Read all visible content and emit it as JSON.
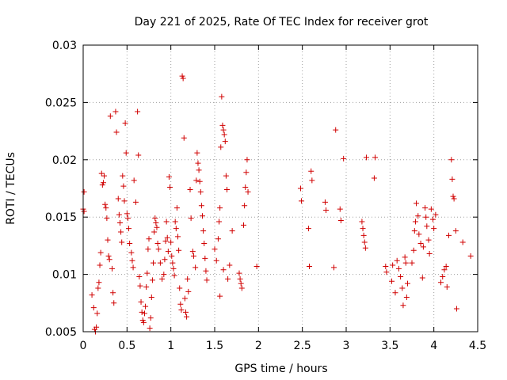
{
  "chart_data": {
    "type": "scatter",
    "title": "Day 221 of 2025, Rate Of TEC Index for receiver grot",
    "xlabel": "GPS time / hours",
    "ylabel": "ROTI / TECUs",
    "xlim": [
      0,
      4.5
    ],
    "ylim": [
      0.005,
      0.03
    ],
    "x_ticks": [
      "0",
      "0.5",
      "1",
      "1.5",
      "2",
      "2.5",
      "3",
      "3.5",
      "4",
      "4.5"
    ],
    "y_ticks": [
      "0.005",
      "0.01",
      "0.015",
      "0.02",
      "0.025",
      "0.03"
    ],
    "grid": true,
    "marker": "+",
    "color": "#d00000",
    "series": [
      {
        "points": [
          [
            0.01,
            0.0172
          ],
          [
            0.0,
            0.0157
          ],
          [
            0.01,
            0.0155
          ],
          [
            0.1,
            0.0082
          ],
          [
            0.12,
            0.0071
          ],
          [
            0.13,
            0.0052
          ],
          [
            0.14,
            0.005
          ],
          [
            0.15,
            0.0054
          ],
          [
            0.16,
            0.0066
          ],
          [
            0.17,
            0.0088
          ],
          [
            0.18,
            0.0093
          ],
          [
            0.19,
            0.0108
          ],
          [
            0.2,
            0.0119
          ],
          [
            0.21,
            0.0188
          ],
          [
            0.22,
            0.0178
          ],
          [
            0.23,
            0.018
          ],
          [
            0.24,
            0.0186
          ],
          [
            0.25,
            0.0161
          ],
          [
            0.26,
            0.0158
          ],
          [
            0.27,
            0.0149
          ],
          [
            0.28,
            0.013
          ],
          [
            0.29,
            0.0116
          ],
          [
            0.3,
            0.0113
          ],
          [
            0.31,
            0.0238
          ],
          [
            0.33,
            0.0105
          ],
          [
            0.34,
            0.0084
          ],
          [
            0.35,
            0.0075
          ],
          [
            0.37,
            0.0242
          ],
          [
            0.38,
            0.0224
          ],
          [
            0.4,
            0.0166
          ],
          [
            0.41,
            0.0152
          ],
          [
            0.42,
            0.0145
          ],
          [
            0.43,
            0.0137
          ],
          [
            0.44,
            0.0128
          ],
          [
            0.45,
            0.0186
          ],
          [
            0.46,
            0.0177
          ],
          [
            0.47,
            0.0164
          ],
          [
            0.48,
            0.0232
          ],
          [
            0.49,
            0.0206
          ],
          [
            0.5,
            0.0153
          ],
          [
            0.51,
            0.0149
          ],
          [
            0.52,
            0.014
          ],
          [
            0.53,
            0.0127
          ],
          [
            0.55,
            0.0119
          ],
          [
            0.56,
            0.0112
          ],
          [
            0.57,
            0.0106
          ],
          [
            0.58,
            0.0182
          ],
          [
            0.6,
            0.0163
          ],
          [
            0.62,
            0.0242
          ],
          [
            0.63,
            0.0204
          ],
          [
            0.64,
            0.0098
          ],
          [
            0.65,
            0.009
          ],
          [
            0.66,
            0.0076
          ],
          [
            0.67,
            0.0067
          ],
          [
            0.68,
            0.006
          ],
          [
            0.69,
            0.0058
          ],
          [
            0.7,
            0.0066
          ],
          [
            0.71,
            0.0072
          ],
          [
            0.72,
            0.0089
          ],
          [
            0.73,
            0.0101
          ],
          [
            0.74,
            0.0122
          ],
          [
            0.75,
            0.0131
          ],
          [
            0.76,
            0.0053
          ],
          [
            0.77,
            0.0062
          ],
          [
            0.78,
            0.008
          ],
          [
            0.79,
            0.0095
          ],
          [
            0.8,
            0.011
          ],
          [
            0.81,
            0.0137
          ],
          [
            0.82,
            0.0149
          ],
          [
            0.83,
            0.0145
          ],
          [
            0.84,
            0.0141
          ],
          [
            0.85,
            0.0127
          ],
          [
            0.86,
            0.0122
          ],
          [
            0.88,
            0.011
          ],
          [
            0.9,
            0.0096
          ],
          [
            0.92,
            0.01
          ],
          [
            0.93,
            0.0113
          ],
          [
            0.94,
            0.0129
          ],
          [
            0.95,
            0.0146
          ],
          [
            0.96,
            0.0132
          ],
          [
            0.97,
            0.012
          ],
          [
            0.98,
            0.0185
          ],
          [
            0.99,
            0.0176
          ],
          [
            1.0,
            0.0128
          ],
          [
            1.01,
            0.0116
          ],
          [
            1.02,
            0.011
          ],
          [
            1.03,
            0.0105
          ],
          [
            1.04,
            0.0099
          ],
          [
            1.05,
            0.0146
          ],
          [
            1.06,
            0.014
          ],
          [
            1.07,
            0.0158
          ],
          [
            1.08,
            0.0133
          ],
          [
            1.09,
            0.0121
          ],
          [
            1.1,
            0.0088
          ],
          [
            1.11,
            0.0074
          ],
          [
            1.12,
            0.0069
          ],
          [
            1.13,
            0.0273
          ],
          [
            1.14,
            0.0271
          ],
          [
            1.15,
            0.0219
          ],
          [
            1.16,
            0.0079
          ],
          [
            1.17,
            0.0067
          ],
          [
            1.18,
            0.0063
          ],
          [
            1.19,
            0.0096
          ],
          [
            1.2,
            0.0085
          ],
          [
            1.22,
            0.0174
          ],
          [
            1.23,
            0.0149
          ],
          [
            1.25,
            0.012
          ],
          [
            1.26,
            0.0116
          ],
          [
            1.28,
            0.0106
          ],
          [
            1.29,
            0.0182
          ],
          [
            1.3,
            0.0206
          ],
          [
            1.31,
            0.0197
          ],
          [
            1.32,
            0.0191
          ],
          [
            1.33,
            0.0181
          ],
          [
            1.34,
            0.0172
          ],
          [
            1.35,
            0.016
          ],
          [
            1.36,
            0.0151
          ],
          [
            1.37,
            0.0138
          ],
          [
            1.38,
            0.0127
          ],
          [
            1.39,
            0.0114
          ],
          [
            1.4,
            0.0103
          ],
          [
            1.41,
            0.0095
          ],
          [
            1.5,
            0.0122
          ],
          [
            1.52,
            0.0112
          ],
          [
            1.54,
            0.0131
          ],
          [
            1.55,
            0.0146
          ],
          [
            1.56,
            0.0158
          ],
          [
            1.57,
            0.0211
          ],
          [
            1.58,
            0.0255
          ],
          [
            1.59,
            0.023
          ],
          [
            1.6,
            0.0226
          ],
          [
            1.61,
            0.0222
          ],
          [
            1.62,
            0.0216
          ],
          [
            1.63,
            0.0186
          ],
          [
            1.64,
            0.0174
          ],
          [
            1.56,
            0.0081
          ],
          [
            1.6,
            0.0104
          ],
          [
            1.65,
            0.0096
          ],
          [
            1.67,
            0.0108
          ],
          [
            1.7,
            0.0138
          ],
          [
            1.78,
            0.0101
          ],
          [
            1.79,
            0.0096
          ],
          [
            1.8,
            0.0092
          ],
          [
            1.81,
            0.0088
          ],
          [
            1.83,
            0.0143
          ],
          [
            1.84,
            0.016
          ],
          [
            1.85,
            0.0176
          ],
          [
            1.86,
            0.0189
          ],
          [
            1.87,
            0.02
          ],
          [
            1.88,
            0.0172
          ],
          [
            1.98,
            0.0107
          ],
          [
            2.48,
            0.0175
          ],
          [
            2.49,
            0.0164
          ],
          [
            2.57,
            0.014
          ],
          [
            2.58,
            0.0107
          ],
          [
            2.6,
            0.019
          ],
          [
            2.61,
            0.0182
          ],
          [
            2.76,
            0.0163
          ],
          [
            2.77,
            0.0156
          ],
          [
            2.86,
            0.0106
          ],
          [
            2.88,
            0.0226
          ],
          [
            2.93,
            0.0157
          ],
          [
            2.94,
            0.0147
          ],
          [
            2.97,
            0.0201
          ],
          [
            3.18,
            0.0146
          ],
          [
            3.19,
            0.014
          ],
          [
            3.2,
            0.0134
          ],
          [
            3.21,
            0.0128
          ],
          [
            3.22,
            0.0123
          ],
          [
            3.23,
            0.0202
          ],
          [
            3.32,
            0.0184
          ],
          [
            3.33,
            0.0202
          ],
          [
            3.45,
            0.0107
          ],
          [
            3.46,
            0.0102
          ],
          [
            3.52,
            0.0094
          ],
          [
            3.53,
            0.0108
          ],
          [
            3.56,
            0.0084
          ],
          [
            3.58,
            0.0112
          ],
          [
            3.6,
            0.0105
          ],
          [
            3.62,
            0.0098
          ],
          [
            3.64,
            0.0088
          ],
          [
            3.65,
            0.0073
          ],
          [
            3.67,
            0.0115
          ],
          [
            3.68,
            0.011
          ],
          [
            3.69,
            0.008
          ],
          [
            3.7,
            0.0092
          ],
          [
            3.75,
            0.011
          ],
          [
            3.77,
            0.0121
          ],
          [
            3.78,
            0.0138
          ],
          [
            3.79,
            0.0146
          ],
          [
            3.8,
            0.0162
          ],
          [
            3.82,
            0.0151
          ],
          [
            3.83,
            0.0135
          ],
          [
            3.85,
            0.0127
          ],
          [
            3.87,
            0.0097
          ],
          [
            3.88,
            0.0124
          ],
          [
            3.9,
            0.0158
          ],
          [
            3.91,
            0.015
          ],
          [
            3.92,
            0.0142
          ],
          [
            3.94,
            0.013
          ],
          [
            3.95,
            0.0118
          ],
          [
            3.97,
            0.0157
          ],
          [
            3.99,
            0.0148
          ],
          [
            4.0,
            0.014
          ],
          [
            4.02,
            0.0152
          ],
          [
            4.08,
            0.0093
          ],
          [
            4.1,
            0.0098
          ],
          [
            4.12,
            0.0104
          ],
          [
            4.14,
            0.0107
          ],
          [
            4.15,
            0.0089
          ],
          [
            4.17,
            0.0134
          ],
          [
            4.2,
            0.02
          ],
          [
            4.21,
            0.0183
          ],
          [
            4.22,
            0.0168
          ],
          [
            4.23,
            0.0166
          ],
          [
            4.25,
            0.0138
          ],
          [
            4.26,
            0.007
          ],
          [
            4.33,
            0.0128
          ],
          [
            4.42,
            0.0116
          ]
        ]
      }
    ]
  }
}
